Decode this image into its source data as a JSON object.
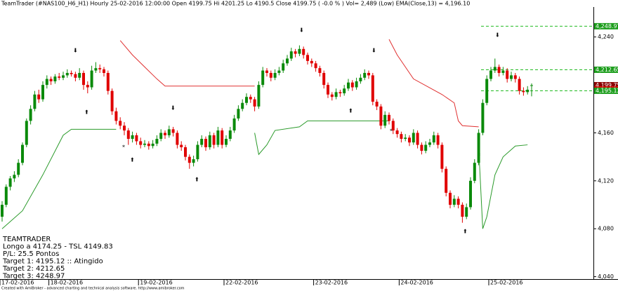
{
  "chart_data": {
    "type": "candlestick",
    "header": "TeamTrader (#NAS100_H6_H1) Hourly  25-02-2016 12:00:00   Open 4199.75  Hi 4201.25  Lo 4190.5  Close 4199.75  ( -0.0 % )  Vol= 2,489 (Low)  EMA(Close,13) = 4,196.10",
    "up_color": "#0a8a0a",
    "down_color": "#e00000",
    "ylim": [
      4038,
      4265
    ],
    "yticks": [
      {
        "value": 4040,
        "label": "4,040"
      },
      {
        "value": 4080,
        "label": "4,080"
      },
      {
        "value": 4120,
        "label": "4,120"
      },
      {
        "value": 4160,
        "label": "4,160"
      },
      {
        "value": 4240,
        "label": "4,240"
      }
    ],
    "x_labels": [
      {
        "index": 0,
        "label": "17-02-2016"
      },
      {
        "index": 12,
        "label": "18-02-2016"
      },
      {
        "index": 34,
        "label": "19-02-2016"
      },
      {
        "index": 55,
        "label": "22-02-2016"
      },
      {
        "index": 77,
        "label": "23-02-2016"
      },
      {
        "index": 98,
        "label": "24-02-2016"
      },
      {
        "index": 120,
        "label": "25-02-2016"
      }
    ],
    "ohlc": [
      [
        4090,
        4103,
        4086,
        4100
      ],
      [
        4100,
        4117,
        4098,
        4115
      ],
      [
        4115,
        4124,
        4112,
        4122
      ],
      [
        4122,
        4128,
        4119,
        4125
      ],
      [
        4125,
        4138,
        4123,
        4135
      ],
      [
        4135,
        4152,
        4133,
        4150
      ],
      [
        4150,
        4172,
        4148,
        4170
      ],
      [
        4170,
        4183,
        4167,
        4180
      ],
      [
        4180,
        4195,
        4178,
        4192
      ],
      [
        4192,
        4196,
        4185,
        4188
      ],
      [
        4188,
        4203,
        4186,
        4200
      ],
      [
        4200,
        4208,
        4197,
        4205
      ],
      [
        4205,
        4207,
        4200,
        4203
      ],
      [
        4203,
        4209,
        4201,
        4207
      ],
      [
        4207,
        4210,
        4204,
        4206
      ],
      [
        4206,
        4211,
        4204,
        4208
      ],
      [
        4208,
        4213,
        4206,
        4210
      ],
      [
        4210,
        4212,
        4207,
        4209
      ],
      [
        4209,
        4211,
        4203,
        4206
      ],
      [
        4206,
        4214,
        4204,
        4210
      ],
      [
        4210,
        4212,
        4196,
        4200
      ],
      [
        4200,
        4203,
        4193,
        4198
      ],
      [
        4198,
        4216,
        4196,
        4212
      ],
      [
        4212,
        4219,
        4210,
        4214
      ],
      [
        4214,
        4217,
        4210,
        4213
      ],
      [
        4213,
        4215,
        4207,
        4210
      ],
      [
        4210,
        4212,
        4192,
        4195
      ],
      [
        4195,
        4197,
        4175,
        4178
      ],
      [
        4178,
        4181,
        4167,
        4170
      ],
      [
        4170,
        4173,
        4163,
        4166
      ],
      [
        4166,
        4169,
        4158,
        4162
      ],
      [
        4162,
        4164,
        4150,
        4155
      ],
      [
        4155,
        4161,
        4152,
        4158
      ],
      [
        4158,
        4160,
        4150,
        4153
      ],
      [
        4153,
        4156,
        4147,
        4150
      ],
      [
        4150,
        4154,
        4148,
        4151
      ],
      [
        4151,
        4153,
        4146,
        4149
      ],
      [
        4149,
        4154,
        4147,
        4151
      ],
      [
        4151,
        4158,
        4149,
        4155
      ],
      [
        4155,
        4163,
        4153,
        4160
      ],
      [
        4160,
        4162,
        4155,
        4158
      ],
      [
        4158,
        4166,
        4156,
        4163
      ],
      [
        4163,
        4165,
        4157,
        4160
      ],
      [
        4160,
        4162,
        4147,
        4150
      ],
      [
        4150,
        4153,
        4145,
        4148
      ],
      [
        4148,
        4150,
        4137,
        4140
      ],
      [
        4140,
        4142,
        4130,
        4135
      ],
      [
        4135,
        4141,
        4132,
        4138
      ],
      [
        4138,
        4153,
        4136,
        4150
      ],
      [
        4150,
        4158,
        4148,
        4155
      ],
      [
        4155,
        4157,
        4145,
        4148
      ],
      [
        4148,
        4161,
        4146,
        4158
      ],
      [
        4158,
        4160,
        4147,
        4150
      ],
      [
        4150,
        4165,
        4148,
        4162
      ],
      [
        4162,
        4164,
        4147,
        4150
      ],
      [
        4150,
        4158,
        4148,
        4155
      ],
      [
        4155,
        4165,
        4153,
        4162
      ],
      [
        4162,
        4175,
        4160,
        4172
      ],
      [
        4172,
        4183,
        4170,
        4180
      ],
      [
        4180,
        4188,
        4178,
        4185
      ],
      [
        4185,
        4193,
        4183,
        4190
      ],
      [
        4190,
        4192,
        4185,
        4188
      ],
      [
        4188,
        4190,
        4178,
        4182
      ],
      [
        4182,
        4203,
        4180,
        4200
      ],
      [
        4200,
        4215,
        4198,
        4212
      ],
      [
        4212,
        4214,
        4207,
        4210
      ],
      [
        4210,
        4212,
        4203,
        4206
      ],
      [
        4206,
        4213,
        4204,
        4210
      ],
      [
        4210,
        4215,
        4208,
        4212
      ],
      [
        4212,
        4221,
        4210,
        4218
      ],
      [
        4218,
        4225,
        4216,
        4222
      ],
      [
        4222,
        4231,
        4220,
        4228
      ],
      [
        4228,
        4230,
        4223,
        4226
      ],
      [
        4226,
        4233,
        4224,
        4230
      ],
      [
        4230,
        4232,
        4222,
        4225
      ],
      [
        4225,
        4227,
        4217,
        4220
      ],
      [
        4220,
        4222,
        4215,
        4218
      ],
      [
        4218,
        4220,
        4211,
        4214
      ],
      [
        4214,
        4216,
        4207,
        4210
      ],
      [
        4210,
        4212,
        4197,
        4200
      ],
      [
        4200,
        4202,
        4189,
        4192
      ],
      [
        4192,
        4194,
        4187,
        4190
      ],
      [
        4190,
        4197,
        4188,
        4194
      ],
      [
        4194,
        4196,
        4190,
        4193
      ],
      [
        4193,
        4200,
        4191,
        4197
      ],
      [
        4197,
        4205,
        4195,
        4202
      ],
      [
        4202,
        4204,
        4195,
        4198
      ],
      [
        4198,
        4206,
        4196,
        4203
      ],
      [
        4203,
        4209,
        4201,
        4206
      ],
      [
        4206,
        4213,
        4204,
        4210
      ],
      [
        4210,
        4212,
        4205,
        4208
      ],
      [
        4208,
        4210,
        4183,
        4186
      ],
      [
        4186,
        4188,
        4179,
        4182
      ],
      [
        4182,
        4184,
        4163,
        4166
      ],
      [
        4166,
        4178,
        4164,
        4175
      ],
      [
        4175,
        4177,
        4167,
        4170
      ],
      [
        4170,
        4172,
        4159,
        4162
      ],
      [
        4162,
        4164,
        4156,
        4159
      ],
      [
        4159,
        4161,
        4152,
        4155
      ],
      [
        4155,
        4159,
        4153,
        4156
      ],
      [
        4156,
        4158,
        4149,
        4152
      ],
      [
        4152,
        4163,
        4150,
        4160
      ],
      [
        4160,
        4162,
        4147,
        4150
      ],
      [
        4150,
        4152,
        4142,
        4145
      ],
      [
        4145,
        4153,
        4143,
        4150
      ],
      [
        4150,
        4155,
        4148,
        4152
      ],
      [
        4152,
        4161,
        4150,
        4158
      ],
      [
        4158,
        4160,
        4147,
        4150
      ],
      [
        4150,
        4152,
        4127,
        4130
      ],
      [
        4130,
        4132,
        4107,
        4110
      ],
      [
        4110,
        4112,
        4097,
        4100
      ],
      [
        4100,
        4108,
        4098,
        4105
      ],
      [
        4105,
        4107,
        4097,
        4100
      ],
      [
        4100,
        4102,
        4085,
        4090
      ],
      [
        4090,
        4101,
        4088,
        4098
      ],
      [
        4098,
        4123,
        4096,
        4120
      ],
      [
        4120,
        4138,
        4118,
        4135
      ],
      [
        4135,
        4163,
        4133,
        4160
      ],
      [
        4160,
        4188,
        4158,
        4185
      ],
      [
        4185,
        4208,
        4183,
        4205
      ],
      [
        4205,
        4215,
        4203,
        4212
      ],
      [
        4212,
        4222,
        4210,
        4215
      ],
      [
        4215,
        4217,
        4207,
        4210
      ],
      [
        4210,
        4215,
        4208,
        4212
      ],
      [
        4212,
        4214,
        4202,
        4205
      ],
      [
        4205,
        4211,
        4203,
        4208
      ],
      [
        4208,
        4210,
        4202,
        4205
      ],
      [
        4205,
        4207,
        4192,
        4195
      ],
      [
        4195,
        4198,
        4191,
        4194
      ],
      [
        4194,
        4199,
        4192,
        4196
      ],
      [
        4199.75,
        4201.25,
        4190.5,
        4199.75
      ]
    ],
    "series": [
      {
        "color": "#e03030",
        "x": [
          29,
          30,
          32,
          35,
          38,
          40,
          62,
          null,
          95,
          97,
          101,
          108,
          111,
          112,
          113,
          117
        ],
        "values": [
          4237,
          4233,
          4225,
          4215,
          4205,
          4199,
          4199,
          null,
          4238,
          4225,
          4205,
          4192,
          4185,
          4170,
          4166,
          4165
        ]
      },
      {
        "color": "#2a9a2a",
        "x": [
          0,
          5,
          10,
          15,
          17,
          28,
          null,
          62,
          63,
          65,
          67,
          73,
          75,
          95,
          null,
          117,
          118,
          119,
          121,
          123,
          126,
          129
        ],
        "values": [
          4080,
          4095,
          4125,
          4158,
          4163,
          4163,
          null,
          4160,
          4142,
          4150,
          4162,
          4165,
          4170,
          4170,
          null,
          4148,
          4080,
          4090,
          4125,
          4140,
          4149,
          4150
        ]
      }
    ],
    "targets": [
      4248.97,
      4212.65,
      4195.12
    ],
    "target_color": "#22bb22",
    "price_labels": [
      {
        "value": 4248.97,
        "label": "4,248.97",
        "color": "#1e9e1e"
      },
      {
        "value": 4212.65,
        "label": "4,212.65",
        "color": "#1e9e1e"
      },
      {
        "value": 4199.75,
        "label": "4,199.75",
        "color": "#8b0000"
      },
      {
        "value": 4196.1,
        "label": "4,196.1",
        "color": "#e00000"
      },
      {
        "value": 4195.12,
        "label": "4,195.12",
        "color": "#1e9e1e"
      }
    ],
    "info": [
      "TEAMTRADER",
      "Longo a 4174.25 - TSL 4149.83",
      " P/L: 25.5 Pontos",
      "Target 1: 4195.12 :: Atingido",
      "Target 2: 4212.65",
      "Target 3: 4248.97"
    ],
    "footer": "Created with AmiBroker - advanced charting and technical analysis software. http://www.amibroker.com"
  }
}
